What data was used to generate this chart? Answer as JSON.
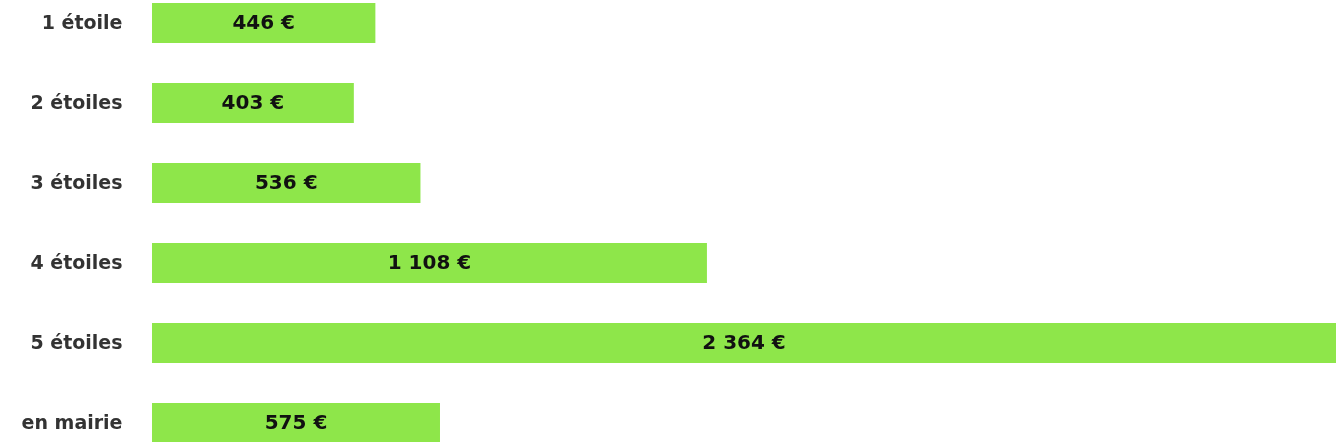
{
  "chart_data": {
    "type": "bar",
    "orientation": "horizontal",
    "categories": [
      "1 étoile",
      "2 étoiles",
      "3 étoiles",
      "4 étoiles",
      "5 étoiles",
      "en mairie"
    ],
    "values": [
      446,
      403,
      536,
      1108,
      2364,
      575
    ],
    "value_labels": [
      "446 €",
      "403 €",
      "536 €",
      "1 108 €",
      "2 364 €",
      "575 €"
    ],
    "color": "#8ee64a"
  }
}
